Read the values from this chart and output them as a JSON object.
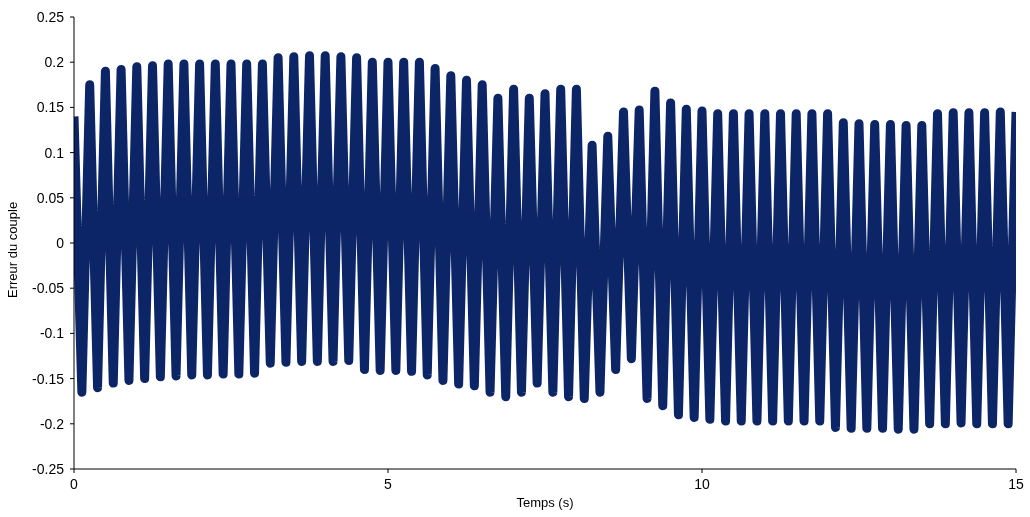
{
  "chart_data": {
    "type": "line",
    "xlabel": "Temps (s)",
    "ylabel": "Erreur du couple",
    "xlim": [
      0,
      15
    ],
    "xticks": [
      0,
      5,
      10,
      15
    ],
    "ylim": [
      -0.25,
      0.25
    ],
    "yticks": [
      -0.25,
      -0.2,
      -0.15,
      -0.1,
      -0.05,
      0,
      0.05,
      0.1,
      0.15,
      0.2,
      0.25
    ],
    "grid": false,
    "legend": false,
    "marker": "none",
    "line_style": "solid",
    "series": [
      {
        "color": "#0c2566",
        "x": [
          0,
          0.125,
          0.25,
          0.375,
          0.5,
          0.625,
          0.75,
          0.875,
          1,
          1.125,
          1.25,
          1.375,
          1.5,
          1.625,
          1.75,
          1.875,
          2,
          2.125,
          2.25,
          2.375,
          2.5,
          2.625,
          2.75,
          2.875,
          3,
          3.125,
          3.25,
          3.375,
          3.5,
          3.625,
          3.75,
          3.875,
          4,
          4.125,
          4.25,
          4.375,
          4.5,
          4.625,
          4.75,
          4.875,
          5,
          5.125,
          5.25,
          5.375,
          5.5,
          5.625,
          5.75,
          5.875,
          6,
          6.125,
          6.25,
          6.375,
          6.5,
          6.625,
          6.75,
          6.875,
          7,
          7.125,
          7.25,
          7.375,
          7.5,
          7.625,
          7.75,
          7.875,
          8,
          8.125,
          8.25,
          8.375,
          8.5,
          8.625,
          8.75,
          8.875,
          9,
          9.125,
          9.25,
          9.375,
          9.5,
          9.625,
          9.75,
          9.875,
          10,
          10.125,
          10.25,
          10.375,
          10.5,
          10.625,
          10.75,
          10.875,
          11,
          11.125,
          11.25,
          11.375,
          11.5,
          11.625,
          11.75,
          11.875,
          12,
          12.125,
          12.25,
          12.375,
          12.5,
          12.625,
          12.75,
          12.875,
          13,
          13.125,
          13.25,
          13.375,
          13.5,
          13.625,
          13.75,
          13.875,
          14,
          14.125,
          14.25,
          14.375,
          14.5,
          14.625,
          14.75,
          14.875,
          15
        ],
        "values": [
          0.14,
          -0.165,
          0.175,
          -0.16,
          0.19,
          -0.155,
          0.192,
          -0.152,
          0.195,
          -0.15,
          0.196,
          -0.148,
          0.198,
          -0.147,
          0.198,
          -0.146,
          0.198,
          -0.146,
          0.198,
          -0.145,
          0.198,
          -0.145,
          0.198,
          -0.144,
          0.198,
          -0.133,
          0.205,
          -0.132,
          0.206,
          -0.131,
          0.207,
          -0.131,
          0.207,
          -0.131,
          0.206,
          -0.13,
          0.205,
          -0.14,
          0.2,
          -0.141,
          0.2,
          -0.141,
          0.2,
          -0.142,
          0.2,
          -0.146,
          0.193,
          -0.152,
          0.185,
          -0.156,
          0.18,
          -0.158,
          0.175,
          -0.165,
          0.16,
          -0.17,
          0.17,
          -0.165,
          0.16,
          -0.155,
          0.165,
          -0.165,
          0.17,
          -0.17,
          0.17,
          -0.172,
          0.108,
          -0.165,
          0.118,
          -0.14,
          0.145,
          -0.128,
          0.147,
          -0.172,
          0.168,
          -0.18,
          0.155,
          -0.19,
          0.148,
          -0.193,
          0.146,
          -0.195,
          0.143,
          -0.197,
          0.143,
          -0.197,
          0.143,
          -0.197,
          0.143,
          -0.197,
          0.143,
          -0.197,
          0.143,
          -0.197,
          0.143,
          -0.197,
          0.143,
          -0.204,
          0.133,
          -0.205,
          0.132,
          -0.205,
          0.131,
          -0.205,
          0.131,
          -0.206,
          0.13,
          -0.206,
          0.13,
          -0.2,
          0.143,
          -0.2,
          0.144,
          -0.199,
          0.144,
          -0.2,
          0.144,
          -0.2,
          0.145,
          -0.2,
          0.145
        ]
      }
    ]
  }
}
